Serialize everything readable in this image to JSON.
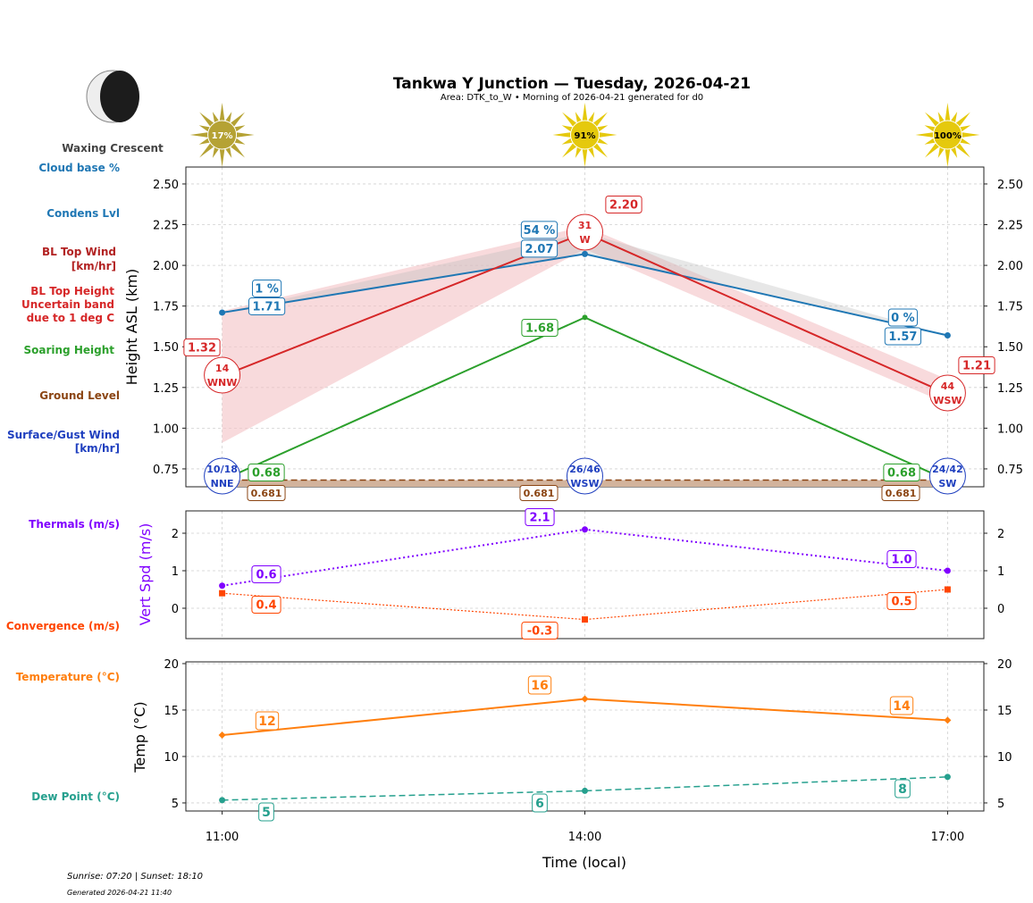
{
  "header": {
    "title": "Tankwa Y Junction — Tuesday, 2026-04-21",
    "subtitle": "Area: DTK_to_W • Morning of 2026-04-21 generated for d0",
    "moon_phase": "Waxing Crescent"
  },
  "footer": {
    "sun_times": "Sunrise: 07:20 | Sunset: 18:10",
    "generated": "Generated 2026-04-21 11:40"
  },
  "side_labels": {
    "cloud_base": "Cloud base %",
    "condens": "Condens Lvl",
    "bl_wind_1": "BL Top Wind",
    "bl_wind_2": "[km/hr]",
    "bl_height_1": "BL Top Height",
    "bl_height_2": "Uncertain band",
    "bl_height_3": "due to 1 deg C",
    "soaring": "Soaring Height",
    "ground": "Ground Level",
    "surface_1": "Surface/Gust Wind",
    "surface_2": "[km/hr]",
    "thermals": "Thermals (m/s)",
    "convergence": "Convergence (m/s)",
    "temperature": "Temperature (°C)",
    "dewpoint": "Dew Point (°C)"
  },
  "colors": {
    "cloud": "#1f77b4",
    "bl": "#d62728",
    "band": "#f4c2c5",
    "soaring": "#2ca02c",
    "ground": "#8b4513",
    "ground_fill": "#d2b39c",
    "surface": "#1f3fbf",
    "thermal": "#8000ff",
    "conv": "#ff4500",
    "temp": "#ff7f0e",
    "dew": "#26a08e",
    "sun": "#e5c90d"
  },
  "chart_data": [
    {
      "type": "line",
      "ylabel": "Height ASL (km)",
      "x": [
        "11:00",
        "14:00",
        "17:00"
      ],
      "x_hours": [
        11,
        14,
        17
      ],
      "xlim": [
        10.7,
        17.3
      ],
      "ylim": [
        0.64,
        2.604
      ],
      "yticks": [
        "0.75",
        "1.00",
        "1.25",
        "1.50",
        "1.75",
        "2.00",
        "2.25",
        "2.50"
      ],
      "sun_percent": [
        "17%",
        "91%",
        "100%"
      ],
      "sun_fraction": [
        0.17,
        0.91,
        1.0
      ],
      "series": [
        {
          "name": "Condens Lvl",
          "values": [
            1.71,
            2.07,
            1.57
          ],
          "labels": [
            "1.71",
            "2.07",
            "1.57"
          ],
          "cloud_pct": [
            "1 %",
            "54 %",
            "0 %"
          ]
        },
        {
          "name": "BL Top Height",
          "values": [
            1.32,
            2.2,
            1.21
          ],
          "labels": [
            "1.32",
            "2.20",
            "1.21"
          ],
          "band_low": [
            0.91,
            2.1,
            1.15
          ],
          "band_high": [
            1.72,
            2.24,
            1.3
          ]
        },
        {
          "name": "Soaring Height",
          "values": [
            0.68,
            1.68,
            0.68
          ],
          "labels": [
            "0.68",
            "1.68",
            "0.68"
          ]
        },
        {
          "name": "Ground Level",
          "values": [
            0.681,
            0.681,
            0.681
          ],
          "labels": [
            "0.681",
            "0.681",
            "0.681"
          ]
        }
      ],
      "bl_wind": [
        {
          "speed": "14",
          "dir": "WNW"
        },
        {
          "speed": "31",
          "dir": "W"
        },
        {
          "speed": "44",
          "dir": "WSW"
        }
      ],
      "surface_wind": [
        {
          "speed": "10/18",
          "dir": "NNE"
        },
        {
          "speed": "26/46",
          "dir": "WSW"
        },
        {
          "speed": "24/42",
          "dir": "SW"
        }
      ]
    },
    {
      "type": "line",
      "ylabel": "Vert Spd (m/s)",
      "ylim": [
        -0.81,
        2.595
      ],
      "yticks": [
        "0",
        "1",
        "2"
      ],
      "series": [
        {
          "name": "Thermals",
          "values": [
            0.6,
            2.1,
            1.0
          ],
          "labels": [
            "0.6",
            "2.1",
            "1.0"
          ]
        },
        {
          "name": "Convergence",
          "values": [
            0.4,
            -0.3,
            0.5
          ],
          "labels": [
            "0.4",
            "-0.3",
            "0.5"
          ]
        }
      ]
    },
    {
      "type": "line",
      "ylabel": "Temp (°C)",
      "xlabel": "Time (local)",
      "ylim": [
        4.13,
        20.19
      ],
      "yticks": [
        "5",
        "10",
        "15",
        "20"
      ],
      "series": [
        {
          "name": "Temperature",
          "values": [
            12.3,
            16.2,
            13.9
          ],
          "labels": [
            "12",
            "16",
            "14"
          ]
        },
        {
          "name": "Dew Point",
          "values": [
            5.3,
            6.3,
            7.8
          ],
          "labels": [
            "5",
            "6",
            "8"
          ]
        }
      ]
    }
  ]
}
